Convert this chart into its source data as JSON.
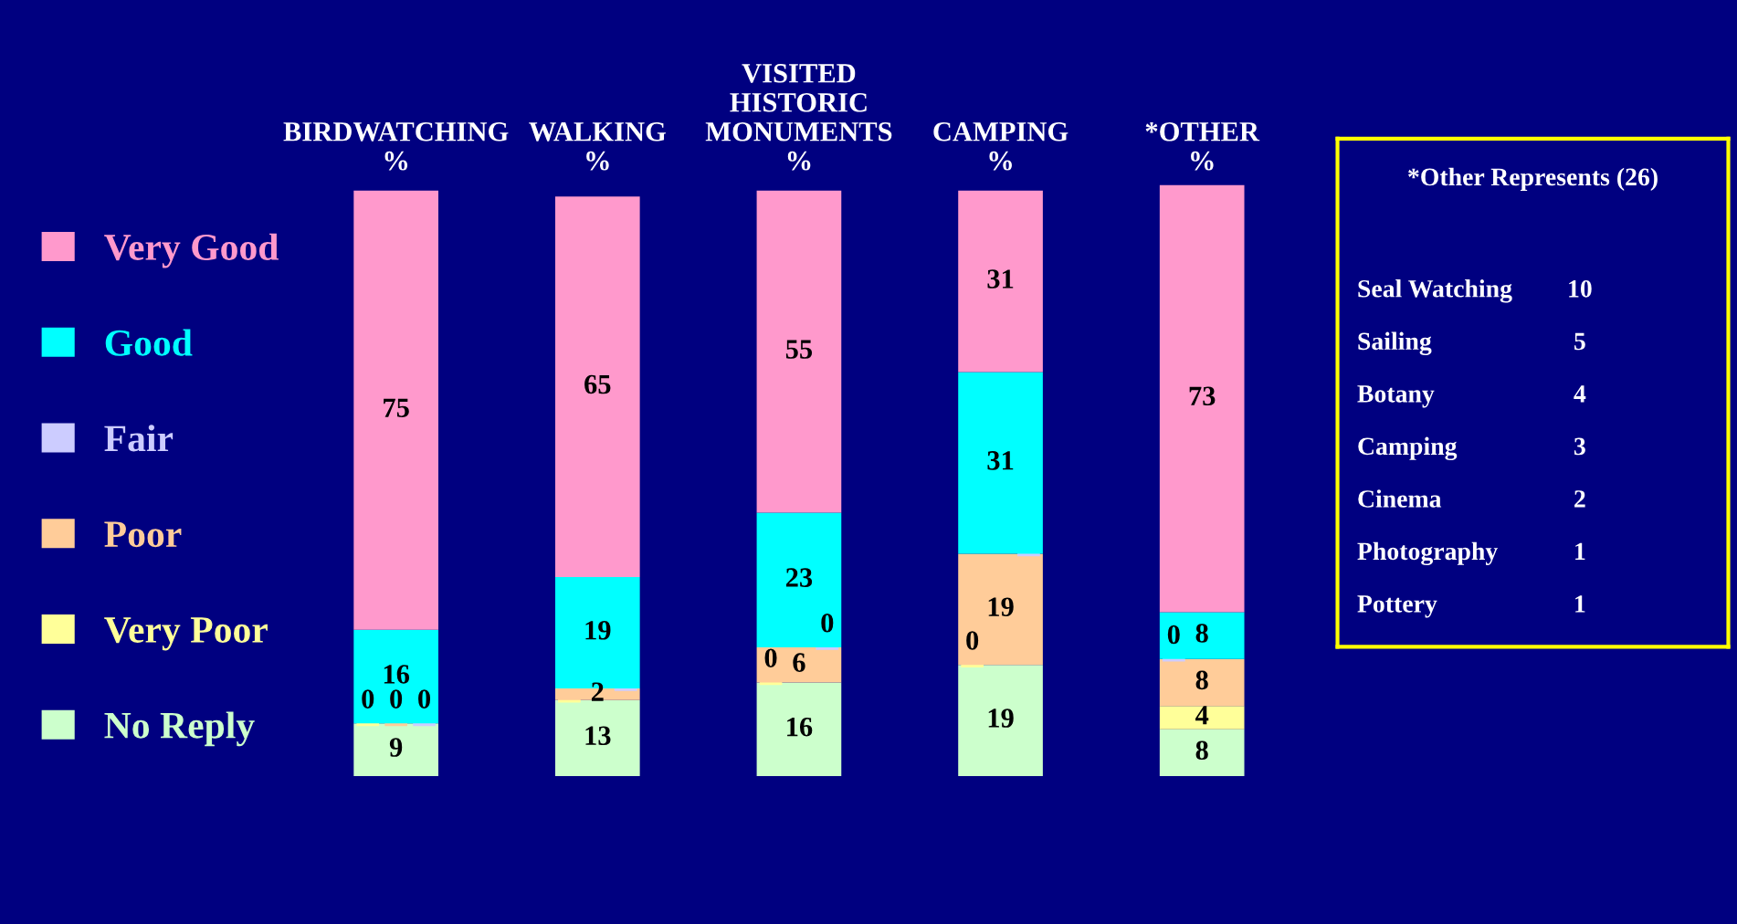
{
  "chart_data": {
    "type": "bar",
    "stacked": true,
    "categories": [
      "BIRDWATCHING\n%",
      "WALKING\n%",
      "VISITED\nHISTORIC\nMONUMENTS\n%",
      "CAMPING\n%",
      "*OTHER\n%"
    ],
    "series": [
      {
        "name": "No Reply",
        "color": "#ccffcc",
        "values": [
          9,
          13,
          16,
          19,
          8
        ],
        "value_labels": [
          "9",
          "13",
          "16",
          "19",
          "8"
        ]
      },
      {
        "name": "Very Poor",
        "color": "#ffff99",
        "values": [
          0,
          0,
          0,
          0,
          4
        ],
        "value_labels": [
          "0",
          null,
          "0",
          "0",
          "4"
        ]
      },
      {
        "name": "Poor",
        "color": "#ffcc99",
        "values": [
          0,
          2,
          6,
          19,
          8
        ],
        "value_labels": [
          "0",
          "2",
          "6",
          "19",
          "8"
        ]
      },
      {
        "name": "Fair",
        "color": "#ccccff",
        "values": [
          0,
          0,
          0,
          0,
          0
        ],
        "value_labels": [
          "0",
          null,
          "0",
          null,
          "0"
        ]
      },
      {
        "name": "Good",
        "color": "#00ffff",
        "values": [
          16,
          19,
          23,
          31,
          8
        ],
        "value_labels": [
          "16",
          "19",
          "23",
          "31",
          "8"
        ]
      },
      {
        "name": "Very Good",
        "color": "#ff99cc",
        "values": [
          75,
          65,
          55,
          31,
          73
        ],
        "value_labels": [
          "75",
          "65",
          "55",
          "31",
          "73"
        ]
      }
    ],
    "legend": "left",
    "tick_labels": "x",
    "grid": false,
    "annotations": [
      "*Other Represents (26)",
      "Seal Watching  10",
      "Sailing  5",
      "Botany  4",
      "Camping  3",
      "Cinema  2",
      "Photography  1",
      "Pottery  1"
    ]
  }
}
